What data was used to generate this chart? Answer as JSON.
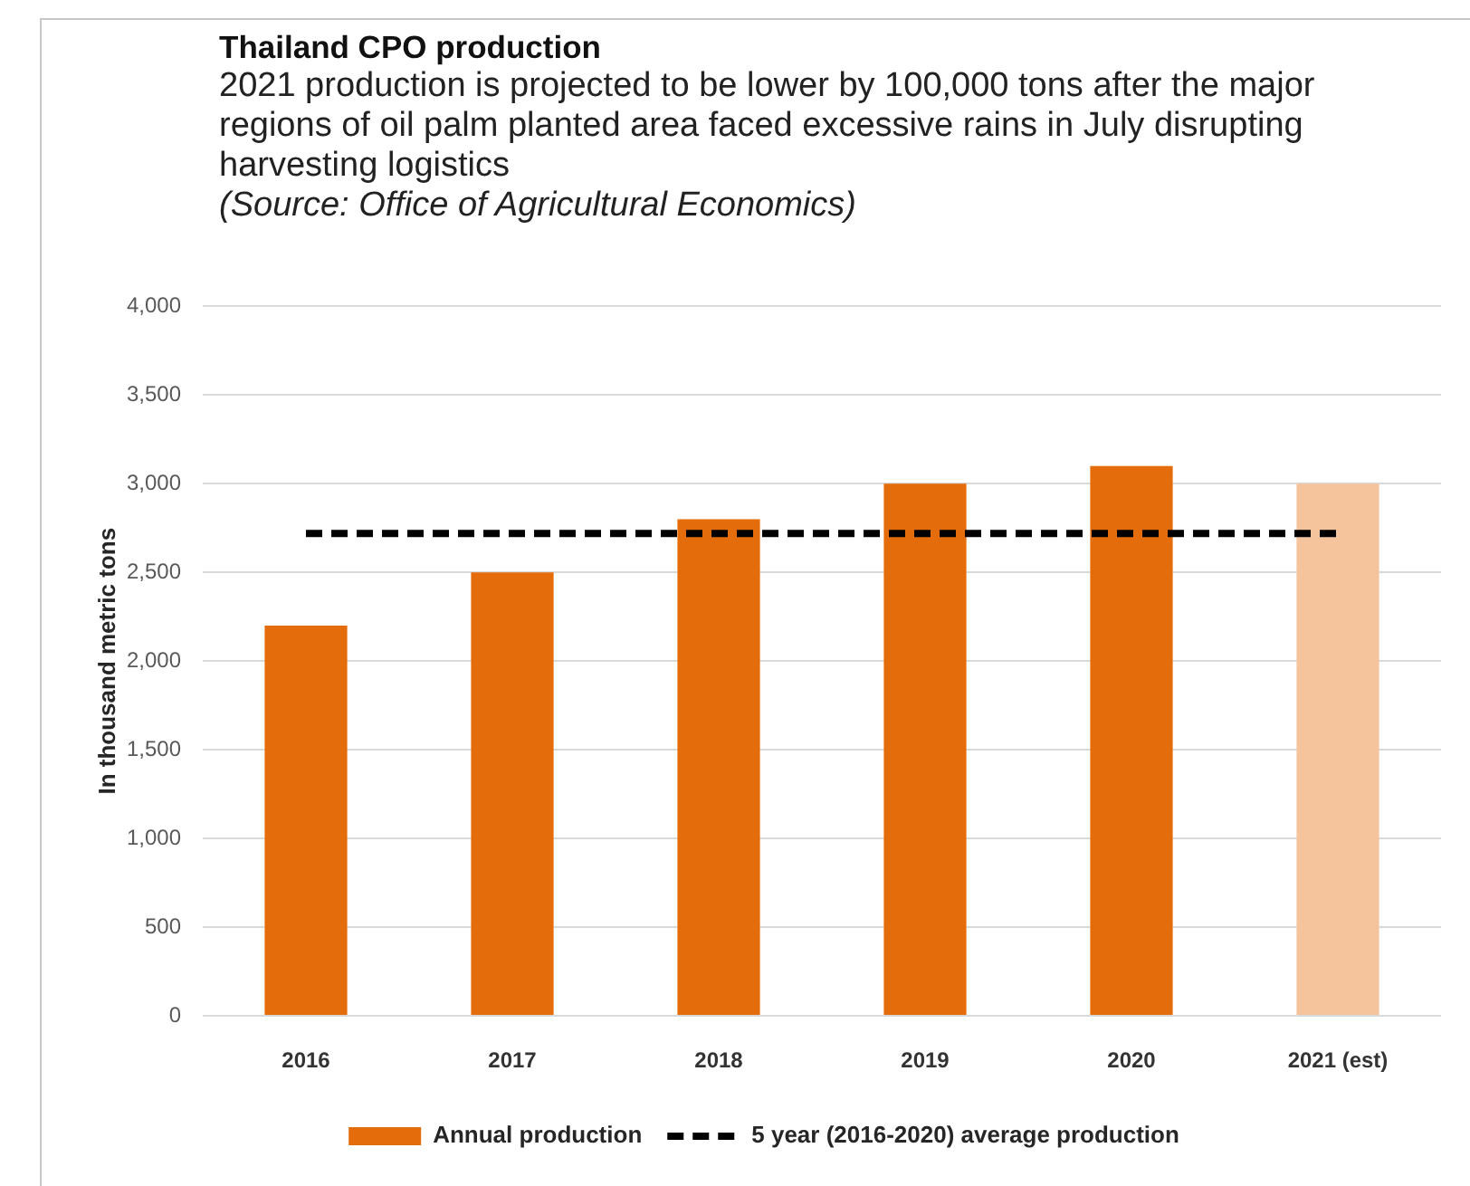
{
  "chart_data": {
    "type": "bar",
    "title": "Thailand CPO production",
    "subtitle": "2021 production is projected to be lower by 100,000 tons after the major regions of oil palm planted area faced excessive rains in July disrupting harvesting logistics",
    "annotations": [
      "(Source: Office of Agricultural Economics)"
    ],
    "ylabel": "In thousand metric tons",
    "categories": [
      "2016",
      "2017",
      "2018",
      "2019",
      "2020",
      "2021 (est)"
    ],
    "series": [
      {
        "name": "Annual production",
        "color": "#e46c0a",
        "colors": [
          "#e46c0a",
          "#e46c0a",
          "#e46c0a",
          "#e46c0a",
          "#e46c0a",
          "#f6c49c"
        ],
        "values": [
          2200,
          2500,
          2800,
          3000,
          3100,
          3000
        ]
      },
      {
        "name": "5 year (2016-2020) average production",
        "type": "line",
        "color": "#000000",
        "line_style": "dashed",
        "marker": "none",
        "values": [
          2720,
          2720,
          2720,
          2720,
          2720,
          2720
        ]
      }
    ],
    "ylim": [
      0,
      4000
    ],
    "yticks": [
      0,
      500,
      {
        "value": 1000,
        "label": "1,000"
      },
      {
        "value": 1500,
        "label": "1,500"
      },
      {
        "value": 2000,
        "label": "2,000"
      },
      {
        "value": 2500,
        "label": "2,500"
      },
      {
        "value": 3000,
        "label": "3,000"
      },
      {
        "value": 3500,
        "label": "3,500"
      },
      {
        "value": 4000,
        "label": "4,000"
      }
    ],
    "grid": "y",
    "legend": "bottom"
  }
}
